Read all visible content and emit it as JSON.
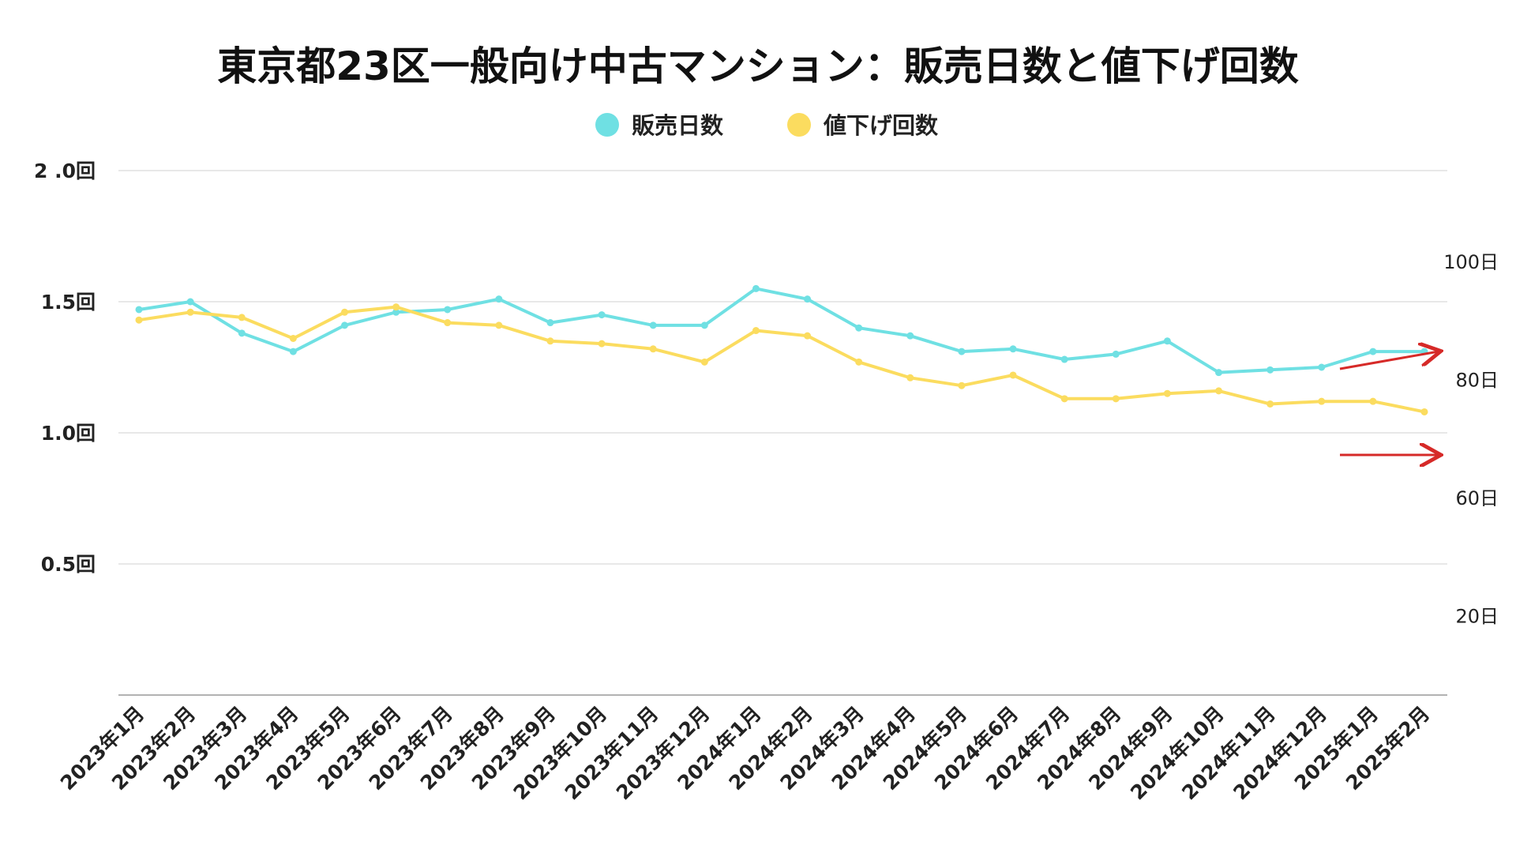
{
  "colors": {
    "sales_days": "#6fe0e3",
    "price_cuts": "#fbdc5f",
    "grid": "#d9d9d9",
    "axis": "#999999",
    "arrow": "#d62a28"
  },
  "chart_data": {
    "type": "line",
    "title": "東京都23区一般向け中古マンション：販売日数と値下げ回数",
    "legend_position": "top-center",
    "grid": true,
    "categories": [
      "2023年1月",
      "2023年2月",
      "2023年3月",
      "2023年4月",
      "2023年5月",
      "2023年6月",
      "2023年7月",
      "2023年8月",
      "2023年9月",
      "2023年10月",
      "2023年11月",
      "2023年12月",
      "2024年1月",
      "2024年2月",
      "2024年3月",
      "2024年4月",
      "2024年5月",
      "2024年6月",
      "2024年7月",
      "2024年8月",
      "2024年9月",
      "2024年10月",
      "2024年11月",
      "2024年12月",
      "2025年1月",
      "2025年2月"
    ],
    "left_axis": {
      "range": [
        0,
        2.0
      ],
      "ticks": [
        {
          "value": 2.0,
          "label": "2 .0回"
        },
        {
          "value": 1.5,
          "label": "1.5回"
        },
        {
          "value": 1.0,
          "label": "1.0回"
        },
        {
          "value": 0.5,
          "label": "0.5回"
        }
      ]
    },
    "right_axis": {
      "ticks": [
        {
          "value": 1.65,
          "label": "100日"
        },
        {
          "value": 1.2,
          "label": "80日"
        },
        {
          "value": 0.75,
          "label": "60日"
        },
        {
          "value": 0.3,
          "label": "20日"
        }
      ]
    },
    "series": [
      {
        "name": "販売日数",
        "values": [
          1.47,
          1.5,
          1.38,
          1.31,
          1.41,
          1.46,
          1.47,
          1.51,
          1.42,
          1.45,
          1.41,
          1.41,
          1.55,
          1.51,
          1.4,
          1.37,
          1.31,
          1.32,
          1.28,
          1.3,
          1.35,
          1.23,
          1.24,
          1.25,
          1.31,
          1.31
        ]
      },
      {
        "name": "値下げ回数",
        "values": [
          1.43,
          1.46,
          1.44,
          1.36,
          1.46,
          1.48,
          1.42,
          1.41,
          1.35,
          1.34,
          1.32,
          1.27,
          1.39,
          1.37,
          1.27,
          1.21,
          1.18,
          1.22,
          1.13,
          1.13,
          1.15,
          1.16,
          1.11,
          1.12,
          1.12,
          1.08
        ]
      }
    ]
  }
}
